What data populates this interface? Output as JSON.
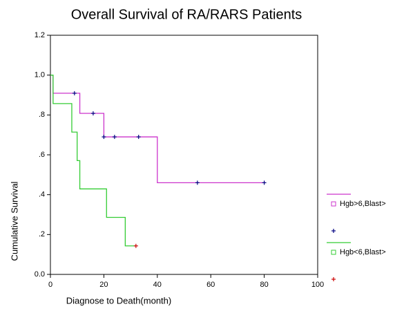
{
  "chart_data": {
    "type": "step",
    "title": "Overall Survival of RA/RARS Patients",
    "x_label": "Diagnose to Death(month)",
    "y_label": "Cumulative Survival",
    "xlim": [
      0,
      100
    ],
    "ylim": [
      0,
      1.2
    ],
    "xticks": [
      0,
      20,
      40,
      60,
      80,
      100
    ],
    "yticks": [
      {
        "value": 0,
        "label": "0.0"
      },
      {
        "value": 0.2,
        "label": ".2"
      },
      {
        "value": 0.4,
        "label": ".4"
      },
      {
        "value": 0.6,
        "label": ".6"
      },
      {
        "value": 0.8,
        "label": ".8"
      },
      {
        "value": 1.0,
        "label": "1.0"
      },
      1.2
    ],
    "series": [
      {
        "name": "Hgb>6,Blast>",
        "color": "#cc33cc",
        "x": [
          0,
          1,
          11,
          20,
          40,
          80
        ],
        "values": [
          1.0,
          0.909,
          0.808,
          0.69,
          0.46,
          0.46
        ],
        "censored": {
          "color": "#000080",
          "x": [
            9,
            16,
            20,
            24,
            33,
            55,
            80
          ],
          "values": [
            0.909,
            0.808,
            0.69,
            0.69,
            0.69,
            0.46,
            0.46
          ]
        }
      },
      {
        "name": "Hgb<6,Blast>",
        "color": "#33cc33",
        "x": [
          0,
          1,
          8,
          10,
          11,
          21,
          28,
          32
        ],
        "values": [
          1.0,
          0.857,
          0.714,
          0.571,
          0.429,
          0.286,
          0.143,
          0.143
        ],
        "censored": {
          "color": "#cc0000",
          "x": [
            32
          ],
          "values": [
            0.143
          ]
        }
      }
    ]
  }
}
